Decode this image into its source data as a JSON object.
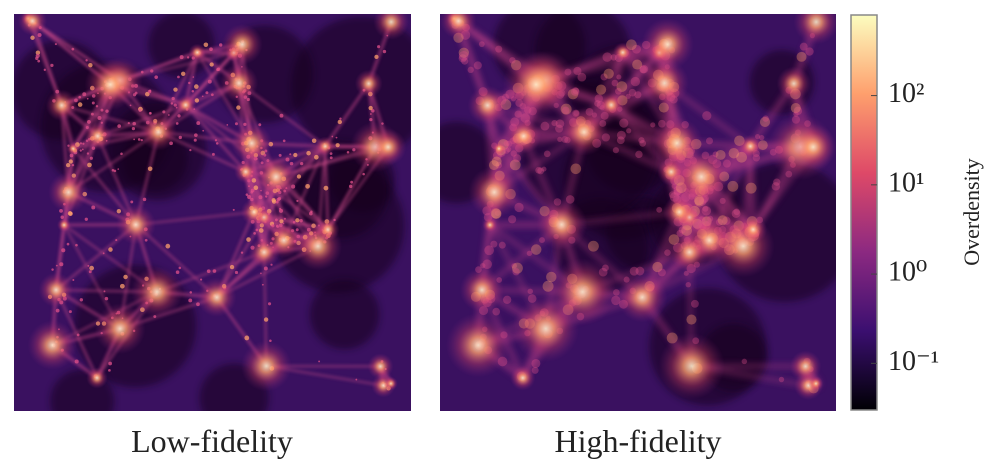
{
  "chart_data": {
    "type": "heatmap",
    "panels": [
      "Low-fidelity",
      "High-fidelity"
    ],
    "colorbar": {
      "label": "Overdensity",
      "log": true,
      "lim": [
        0.03,
        800
      ],
      "ticks": [
        {
          "value": 0.1,
          "label": "10⁻¹"
        },
        {
          "value": 1,
          "label": "10⁰"
        },
        {
          "value": 10,
          "label": "10¹"
        },
        {
          "value": 100,
          "label": "10²"
        }
      ],
      "colormap": [
        "#000004",
        "#3b0f70",
        "#8c2981",
        "#de4968",
        "#fe9f6d",
        "#fcfdbf"
      ]
    }
  }
}
